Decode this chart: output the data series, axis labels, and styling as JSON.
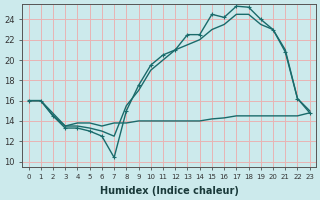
{
  "xlabel": "Humidex (Indice chaleur)",
  "background_color": "#cceaec",
  "grid_color": "#e8b4b4",
  "line_color": "#1a6b6b",
  "xlim": [
    -0.5,
    23.5
  ],
  "ylim": [
    9.5,
    25.5
  ],
  "xticks": [
    0,
    1,
    2,
    3,
    4,
    5,
    6,
    7,
    8,
    9,
    10,
    11,
    12,
    13,
    14,
    15,
    16,
    17,
    18,
    19,
    20,
    21,
    22,
    23
  ],
  "yticks": [
    10,
    12,
    14,
    16,
    18,
    20,
    22,
    24
  ],
  "line1_x": [
    0,
    1,
    2,
    3,
    4,
    5,
    6,
    7,
    8,
    9,
    10,
    11,
    12,
    13,
    14,
    15,
    16,
    17,
    18,
    19,
    20,
    21,
    22,
    23
  ],
  "line1_y": [
    16.0,
    16.0,
    14.5,
    13.3,
    13.3,
    13.0,
    12.5,
    10.4,
    15.0,
    17.5,
    19.5,
    20.5,
    21.0,
    22.5,
    22.5,
    24.5,
    24.2,
    25.3,
    25.2,
    24.0,
    23.0,
    20.8,
    16.2,
    14.8
  ],
  "line2_x": [
    0,
    1,
    3,
    4,
    5,
    6,
    7,
    8,
    9,
    10,
    11,
    12,
    13,
    14,
    15,
    16,
    17,
    18,
    19,
    20,
    21,
    22,
    23
  ],
  "line2_y": [
    16.0,
    16.0,
    13.5,
    13.5,
    13.3,
    13.0,
    12.5,
    15.5,
    17.0,
    19.0,
    20.0,
    21.0,
    21.5,
    22.0,
    23.0,
    23.5,
    24.5,
    24.5,
    23.5,
    23.0,
    21.0,
    16.2,
    15.0
  ],
  "line3_x": [
    0,
    1,
    2,
    3,
    4,
    5,
    6,
    7,
    8,
    9,
    10,
    11,
    12,
    13,
    14,
    15,
    16,
    17,
    18,
    19,
    20,
    21,
    22,
    23
  ],
  "line3_y": [
    16.0,
    16.0,
    14.5,
    13.5,
    13.8,
    13.8,
    13.5,
    13.8,
    13.8,
    14.0,
    14.0,
    14.0,
    14.0,
    14.0,
    14.0,
    14.2,
    14.3,
    14.5,
    14.5,
    14.5,
    14.5,
    14.5,
    14.5,
    14.8
  ],
  "lw": 1.0
}
